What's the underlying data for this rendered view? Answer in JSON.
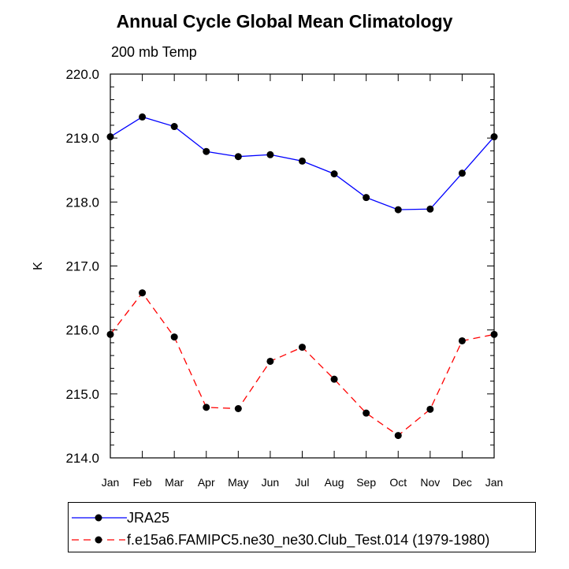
{
  "chart_data": {
    "type": "line",
    "title": "Annual Cycle Global Mean Climatology",
    "subtitle": "200 mb Temp",
    "xlabel": "",
    "ylabel": "K",
    "categories": [
      "Jan",
      "Feb",
      "Mar",
      "Apr",
      "May",
      "Jun",
      "Jul",
      "Aug",
      "Sep",
      "Oct",
      "Nov",
      "Dec",
      "Jan"
    ],
    "ylim": [
      214.0,
      220.0
    ],
    "yticks": [
      "214.0",
      "215.0",
      "216.0",
      "217.0",
      "218.0",
      "219.0",
      "220.0"
    ],
    "series": [
      {
        "name": "JRA25",
        "color": "#0000ff",
        "dash": "solid",
        "marker": "filled-circle",
        "values": [
          219.02,
          219.33,
          219.18,
          218.79,
          218.71,
          218.74,
          218.64,
          218.44,
          218.07,
          217.88,
          217.89,
          218.45,
          219.02
        ]
      },
      {
        "name": "f.e15a6.FAMIPC5.ne30_ne30.Club_Test.014 (1979-1980)",
        "color": "#ff0000",
        "dash": "dashed",
        "marker": "filled-circle",
        "values": [
          215.93,
          216.58,
          215.89,
          214.79,
          214.77,
          215.51,
          215.73,
          215.23,
          214.7,
          214.35,
          214.76,
          215.83,
          215.93
        ]
      }
    ],
    "grid": false,
    "legend_position": "bottom"
  }
}
